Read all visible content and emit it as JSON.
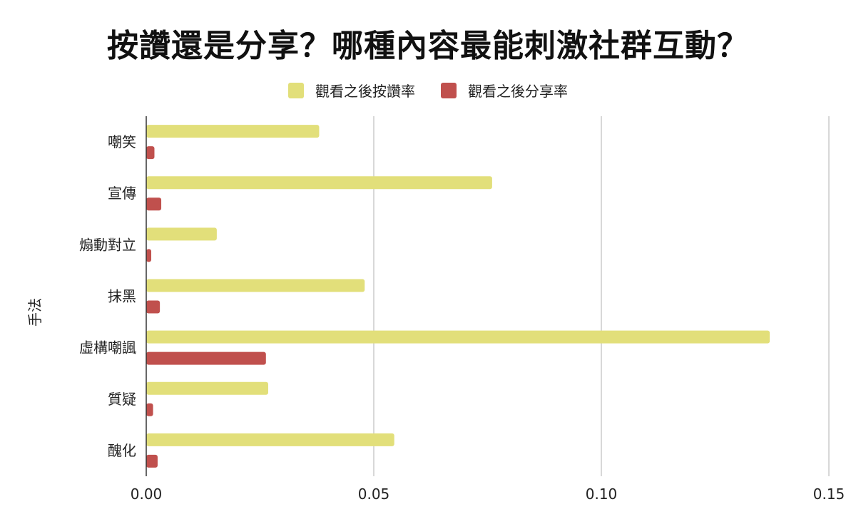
{
  "chart_data": {
    "type": "bar",
    "orientation": "horizontal",
    "title": "按讚還是分享？哪種內容最能刺激社群互動？",
    "ylabel": "手法",
    "xlabel": "",
    "categories": [
      "嘲笑",
      "宣傳",
      "煽動對立",
      "抹黑",
      "虛構嘲諷",
      "質疑",
      "醜化"
    ],
    "series": [
      {
        "name": "觀看之後按讚率",
        "color": "#e2df7a",
        "values": [
          0.038,
          0.076,
          0.0155,
          0.048,
          0.137,
          0.0268,
          0.0545
        ]
      },
      {
        "name": "觀看之後分享率",
        "color": "#c0504d",
        "values": [
          0.0018,
          0.0033,
          0.0011,
          0.003,
          0.0263,
          0.0015,
          0.0025
        ]
      }
    ],
    "xlim": [
      0,
      0.15
    ],
    "xticks": [
      "0.00",
      "0.05",
      "0.10",
      "0.15"
    ],
    "grid": true,
    "legend_position": "top-center"
  }
}
